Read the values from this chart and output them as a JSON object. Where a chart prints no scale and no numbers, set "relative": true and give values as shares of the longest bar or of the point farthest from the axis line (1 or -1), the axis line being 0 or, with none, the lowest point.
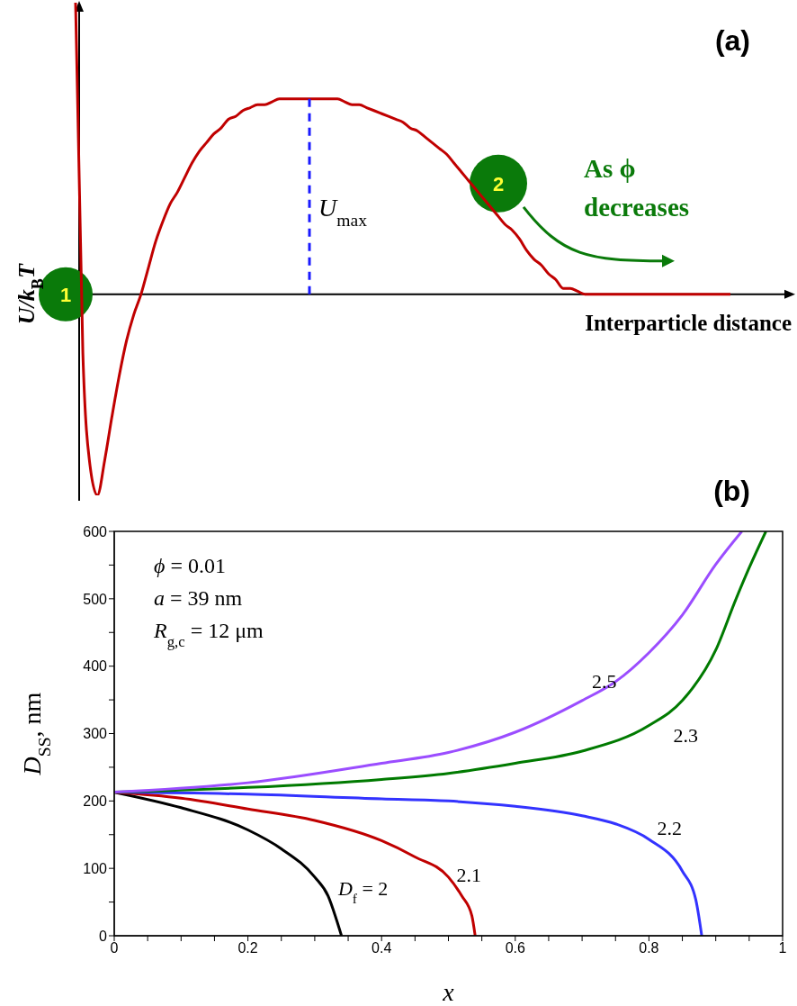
{
  "chart_data": [
    {
      "type": "line",
      "title": "(a)",
      "xlabel": "Interparticle distance",
      "ylabel": "U/k$_{B}$T",
      "relative": true,
      "categories": [
        null,
        null,
        null,
        null,
        null,
        null,
        null,
        null,
        null,
        null,
        null,
        null,
        null,
        null,
        null,
        null,
        null,
        null,
        null,
        null,
        null,
        null,
        null,
        null,
        null,
        null,
        null,
        null,
        null,
        null,
        null,
        null,
        null,
        null,
        null,
        null,
        null,
        null,
        null,
        null,
        null,
        null,
        null,
        null,
        null,
        null,
        null,
        null,
        null,
        null,
        null,
        null,
        null,
        null,
        null,
        null,
        null,
        null,
        null,
        null,
        null,
        null,
        null,
        null,
        null,
        null,
        null,
        null,
        null,
        null,
        null,
        null,
        null,
        null,
        null,
        null,
        null,
        null,
        null,
        null,
        null,
        null,
        null,
        null,
        null,
        null,
        null,
        null,
        null,
        null,
        null
      ],
      "series": [
        {
          "color": "#c00000",
          "values": [
            1,
            -0.2,
            -0.59,
            -0.69,
            -0.57,
            -0.42,
            -0.28,
            -0.16,
            -0.07,
            0,
            0.09,
            0.18,
            0.25,
            0.31,
            0.35,
            0.4,
            0.45,
            0.49,
            0.52,
            0.55,
            0.57,
            0.6,
            0.61,
            0.63,
            0.64,
            0.65,
            0.65,
            0.66,
            0.67,
            0.67,
            0.67,
            0.67,
            0.67,
            0.67,
            0.67,
            0.67,
            0.67,
            0.66,
            0.65,
            0.65,
            0.64,
            0.63,
            0.62,
            0.61,
            0.6,
            0.59,
            0.57,
            0.56,
            0.54,
            0.52,
            0.5,
            0.48,
            0.45,
            0.42,
            0.39,
            0.36,
            0.33,
            0.3,
            0.27,
            0.24,
            0.22,
            0.19,
            0.15,
            0.12,
            0.1,
            0.07,
            0.05,
            0.02,
            0.02,
            0.01,
            0,
            0,
            0,
            0,
            0,
            0,
            0,
            0,
            0,
            0,
            0,
            0,
            0,
            0,
            0,
            0,
            0,
            0,
            0,
            0,
            0
          ]
        }
      ],
      "annotations": [
        "U$_{max}$",
        "1",
        "2",
        "As ϕ decreases"
      ]
    },
    {
      "type": "line",
      "title": "(b)",
      "xlabel": "x",
      "ylabel": "D$_{SS}$, nm",
      "xlim": [
        0,
        1
      ],
      "ylim": [
        0,
        600
      ],
      "xticks": [
        0,
        {
          "value": 0.05,
          "label": null
        },
        {
          "value": 0.1,
          "label": null
        },
        {
          "value": 0.15,
          "label": null
        },
        0.2,
        {
          "value": 0.25,
          "label": null
        },
        {
          "value": 0.3,
          "label": null
        },
        {
          "value": 0.35,
          "label": null
        },
        0.4,
        {
          "value": 0.45,
          "label": null
        },
        {
          "value": 0.5,
          "label": null
        },
        {
          "value": 0.55,
          "label": null
        },
        0.6,
        {
          "value": 0.65,
          "label": null
        },
        {
          "value": 0.7,
          "label": null
        },
        {
          "value": 0.75,
          "label": null
        },
        0.8,
        {
          "value": 0.85,
          "label": null
        },
        {
          "value": 0.9,
          "label": null
        },
        {
          "value": 0.95,
          "label": null
        },
        1
      ],
      "yticks": [
        0,
        {
          "value": 50,
          "label": null
        },
        100,
        {
          "value": 150,
          "label": null
        },
        200,
        {
          "value": 250,
          "label": null
        },
        300,
        {
          "value": 350,
          "label": null
        },
        400,
        {
          "value": 450,
          "label": null
        },
        500,
        {
          "value": 550,
          "label": null
        },
        600
      ],
      "series": [
        {
          "name": "D$_{f}$ = 2",
          "color": "#000000",
          "x": [
            0,
            0.1,
            0.2,
            0.25,
            0.3,
            0.32,
            0.335,
            0.34
          ],
          "values": [
            213,
            190,
            157,
            129,
            87,
            59,
            16,
            0
          ]
        },
        {
          "name": "2.1",
          "color": "#c00000",
          "x": [
            0,
            0.1,
            0.2,
            0.3,
            0.4,
            0.45,
            0.5,
            0.52,
            0.535,
            0.54
          ],
          "values": [
            213,
            204,
            188,
            171,
            141,
            117,
            87,
            59,
            30,
            0
          ]
        },
        {
          "name": "2.2",
          "color": "#3333ff",
          "x": [
            0,
            0.2,
            0.4,
            0.5,
            0.6,
            0.7,
            0.75,
            0.8,
            0.85,
            0.87,
            0.879
          ],
          "values": [
            213,
            210,
            203,
            200,
            192,
            178,
            166,
            143,
            96,
            54,
            0
          ]
        },
        {
          "name": "2.3",
          "color": "#007a00",
          "x": [
            0,
            0.2,
            0.4,
            0.5,
            0.6,
            0.7,
            0.8,
            0.85,
            0.9,
            0.93,
            0.95,
            0.975
          ],
          "values": [
            213,
            220,
            232,
            241,
            256,
            274,
            312,
            349,
            424,
            499,
            546,
            600
          ]
        },
        {
          "name": "2.5",
          "color": "#9b4dff",
          "x": [
            0,
            0.2,
            0.4,
            0.5,
            0.6,
            0.7,
            0.75,
            0.8,
            0.85,
            0.9,
            0.939
          ],
          "values": [
            213,
            227,
            256,
            272,
            302,
            349,
            377,
            420,
            476,
            551,
            600
          ]
        }
      ],
      "annotations": [
        "ϕ = 0.01",
        "a = 39 nm",
        "R$_{g,c}$ = 12 μm"
      ]
    }
  ]
}
